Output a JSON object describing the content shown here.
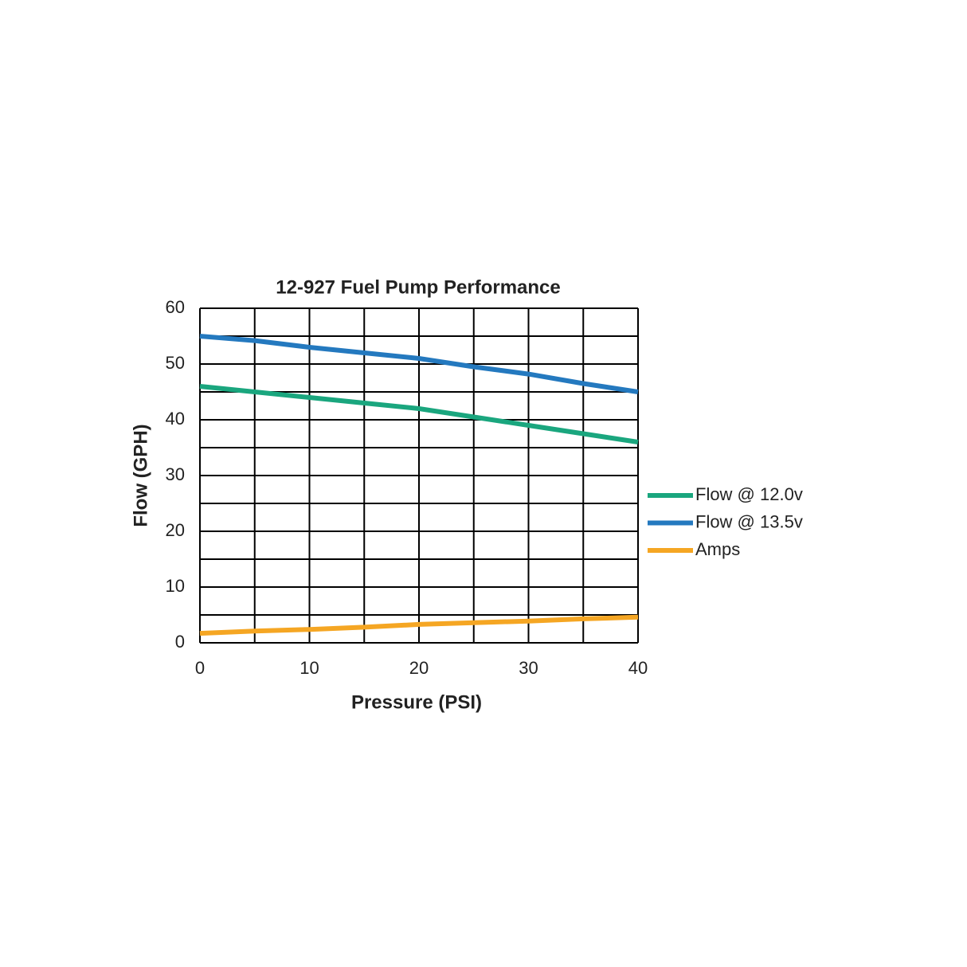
{
  "chart_data": {
    "type": "line",
    "title": "12-927 Fuel Pump Performance",
    "x_label": "Pressure (PSI)",
    "y_label": "Flow (GPH)",
    "x": [
      0,
      5,
      10,
      15,
      20,
      25,
      30,
      35,
      40
    ],
    "series": [
      {
        "name": "Flow @ 12.0v",
        "color": "#1aa67e",
        "values": [
          46,
          45,
          44,
          43,
          42,
          40.5,
          39,
          37.5,
          36
        ]
      },
      {
        "name": "Flow @ 13.5v",
        "color": "#2479bf",
        "values": [
          55,
          54.2,
          53,
          52,
          51,
          49.5,
          48.2,
          46.5,
          45
        ]
      },
      {
        "name": "Amps",
        "color": "#f5a623",
        "values": [
          1.7,
          2.1,
          2.4,
          2.8,
          3.3,
          3.6,
          3.9,
          4.3,
          4.6
        ]
      }
    ],
    "xlim": [
      0,
      40
    ],
    "xticks": [
      0,
      10,
      20,
      30,
      40
    ],
    "ylim": [
      0,
      60
    ],
    "yticks": [
      0,
      10,
      20,
      30,
      40,
      50,
      60
    ],
    "xgrid": [
      0,
      5,
      10,
      15,
      20,
      25,
      30,
      35,
      40
    ],
    "ygrid": [
      0,
      5,
      10,
      15,
      20,
      25,
      30,
      35,
      40,
      45,
      50,
      55,
      60
    ],
    "grid": true,
    "legend": "right"
  }
}
